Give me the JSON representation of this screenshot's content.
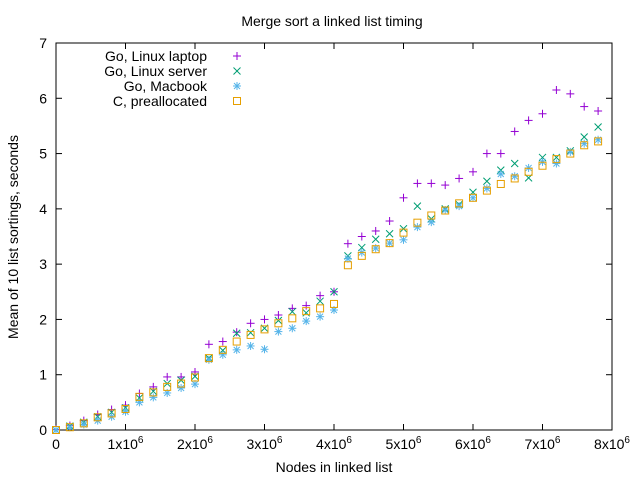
{
  "chart_data": {
    "type": "scatter",
    "title": "Merge sort a linked list timing",
    "xlabel": "Nodes in linked list",
    "ylabel": "Mean of 10 list sortings, seconds",
    "xlim": [
      0,
      8000000
    ],
    "ylim": [
      0,
      7
    ],
    "x_ticks": [
      {
        "value": 0,
        "label": "0"
      },
      {
        "value": 1000000,
        "label": "1x10",
        "exp": "6"
      },
      {
        "value": 2000000,
        "label": "2x10",
        "exp": "6"
      },
      {
        "value": 3000000,
        "label": "3x10",
        "exp": "6"
      },
      {
        "value": 4000000,
        "label": "4x10",
        "exp": "6"
      },
      {
        "value": 5000000,
        "label": "5x10",
        "exp": "6"
      },
      {
        "value": 6000000,
        "label": "6x10",
        "exp": "6"
      },
      {
        "value": 7000000,
        "label": "7x10",
        "exp": "6"
      },
      {
        "value": 8000000,
        "label": "8x10",
        "exp": "6"
      }
    ],
    "y_ticks": [
      {
        "value": 0,
        "label": "0"
      },
      {
        "value": 1,
        "label": "1"
      },
      {
        "value": 2,
        "label": "2"
      },
      {
        "value": 3,
        "label": "3"
      },
      {
        "value": 4,
        "label": "4"
      },
      {
        "value": 5,
        "label": "5"
      },
      {
        "value": 6,
        "label": "6"
      },
      {
        "value": 7,
        "label": "7"
      }
    ],
    "grid": false,
    "legend": "top-left",
    "x": [
      0,
      200000,
      400000,
      600000,
      800000,
      1000000,
      1200000,
      1400000,
      1600000,
      1800000,
      2000000,
      2200000,
      2400000,
      2600000,
      2800000,
      3000000,
      3200000,
      3400000,
      3600000,
      3800000,
      4000000,
      4200000,
      4400000,
      4600000,
      4800000,
      5000000,
      5200000,
      5400000,
      5600000,
      5800000,
      6000000,
      6200000,
      6400000,
      6600000,
      6800000,
      7000000,
      7200000,
      7400000,
      7600000,
      7800000
    ],
    "series": [
      {
        "name": "Go, Linux laptop",
        "marker": "plus",
        "color": "#9400d3",
        "values": [
          0.01,
          0.08,
          0.17,
          0.28,
          0.37,
          0.45,
          0.66,
          0.78,
          0.96,
          0.96,
          1.05,
          1.55,
          1.6,
          1.77,
          1.93,
          2.0,
          2.08,
          2.2,
          2.25,
          2.43,
          2.5,
          3.37,
          3.5,
          3.6,
          3.78,
          4.2,
          4.46,
          4.46,
          4.43,
          4.55,
          4.67,
          5.0,
          5.0,
          5.4,
          5.6,
          5.72,
          6.15,
          6.08,
          5.85,
          5.77
        ]
      },
      {
        "name": "Go, Linux server",
        "marker": "cross",
        "color": "#009e73",
        "values": [
          0.0,
          0.07,
          0.14,
          0.24,
          0.32,
          0.4,
          0.58,
          0.7,
          0.84,
          0.9,
          0.97,
          1.3,
          1.44,
          1.75,
          1.76,
          1.84,
          1.98,
          2.14,
          2.12,
          2.33,
          2.5,
          3.15,
          3.3,
          3.45,
          3.55,
          3.64,
          4.05,
          3.82,
          4.0,
          4.08,
          4.3,
          4.5,
          4.7,
          4.82,
          4.56,
          4.93,
          4.93,
          5.05,
          5.3,
          5.48
        ]
      },
      {
        "name": "Go, Macbook",
        "marker": "star",
        "color": "#56b4e9",
        "values": [
          0.0,
          0.05,
          0.1,
          0.17,
          0.24,
          0.33,
          0.5,
          0.59,
          0.67,
          0.76,
          0.83,
          1.27,
          1.36,
          1.45,
          1.52,
          1.46,
          1.78,
          1.84,
          1.97,
          2.05,
          2.17,
          3.1,
          3.21,
          3.29,
          3.38,
          3.44,
          3.67,
          3.76,
          3.98,
          4.05,
          4.2,
          4.37,
          4.63,
          4.59,
          4.74,
          4.85,
          4.82,
          5.03,
          5.18,
          5.25
        ]
      },
      {
        "name": "C, preallocated",
        "marker": "square",
        "color": "#e69f00",
        "values": [
          0.0,
          0.05,
          0.12,
          0.23,
          0.3,
          0.38,
          0.6,
          0.68,
          0.78,
          0.84,
          0.95,
          1.3,
          1.45,
          1.6,
          1.72,
          1.82,
          1.93,
          2.02,
          2.15,
          2.2,
          2.28,
          2.98,
          3.15,
          3.27,
          3.38,
          3.57,
          3.75,
          3.88,
          3.97,
          4.1,
          4.2,
          4.33,
          4.45,
          4.55,
          4.67,
          4.78,
          4.9,
          5.0,
          5.15,
          5.22
        ]
      }
    ]
  }
}
